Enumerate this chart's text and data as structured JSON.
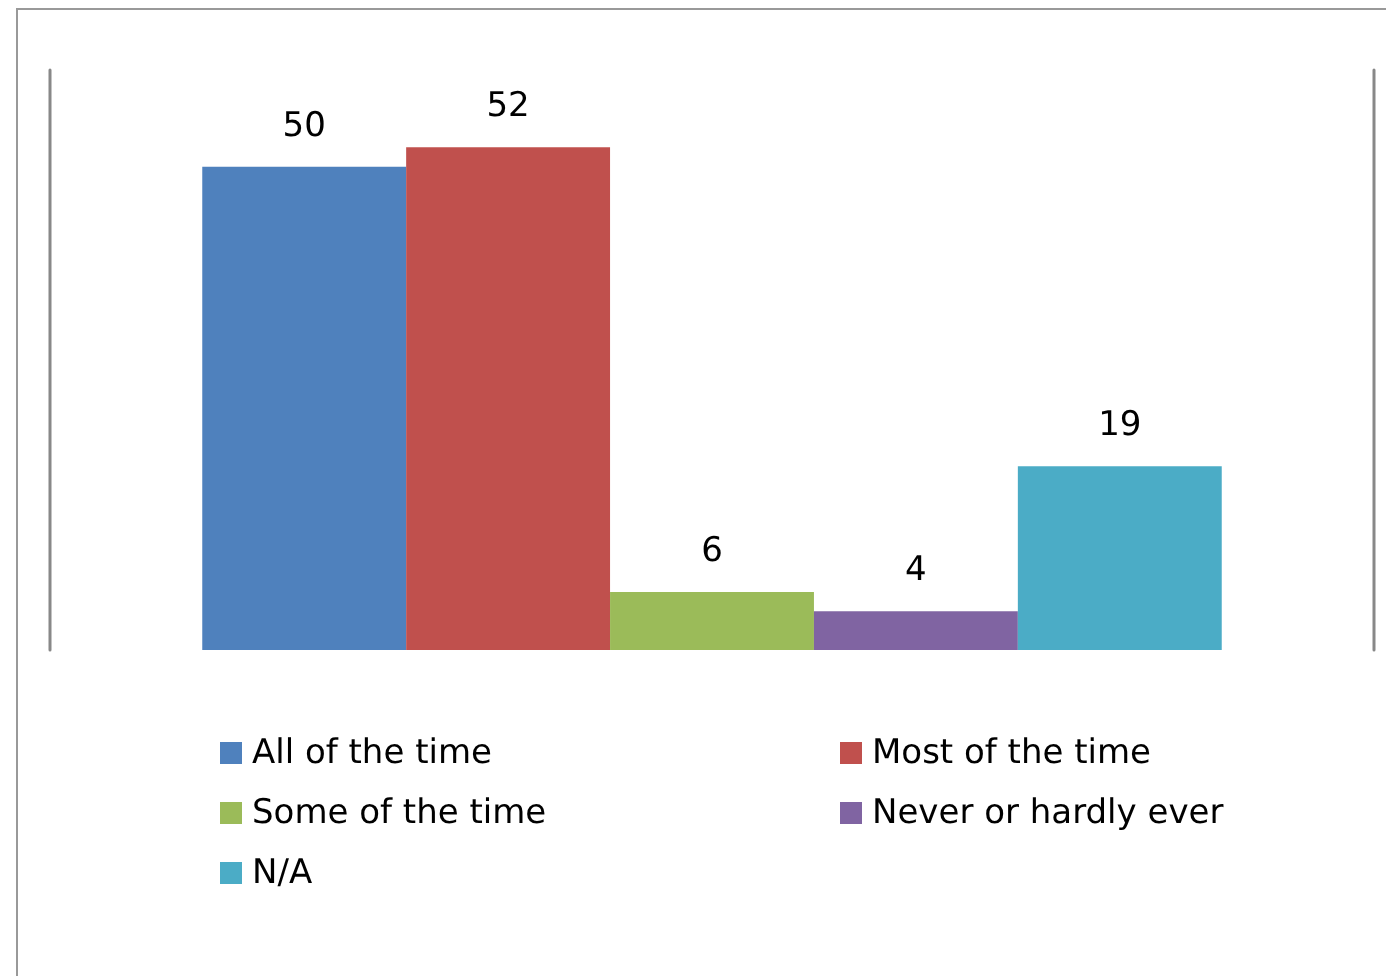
{
  "chart_data": {
    "type": "bar",
    "categories": [
      null
    ],
    "data_labels": true,
    "legend": "bottom",
    "grid": false,
    "series": [
      {
        "name": "All of the time",
        "color": "#4f81bd",
        "values": [
          50
        ]
      },
      {
        "name": "Most of the time",
        "color": "#c0504d",
        "values": [
          52
        ]
      },
      {
        "name": "Some of the time",
        "color": "#9bbb59",
        "values": [
          6
        ]
      },
      {
        "name": "Never or hardly ever",
        "color": "#8064a2",
        "values": [
          4
        ]
      },
      {
        "name": "N/A",
        "color": "#4bacc6",
        "values": [
          19
        ]
      }
    ]
  }
}
